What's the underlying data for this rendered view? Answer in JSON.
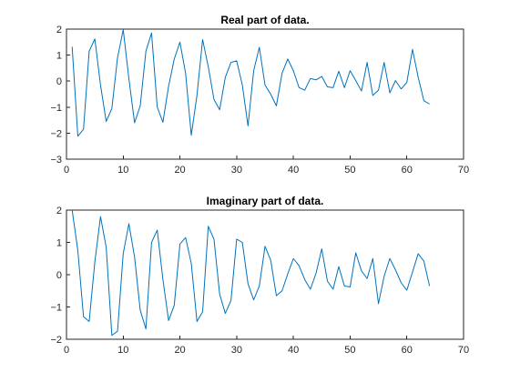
{
  "figure": {
    "background": "#ffffff",
    "axis_color": "#262626"
  },
  "chart_data": [
    {
      "type": "line",
      "title": "Real part of data.",
      "xlabel": "",
      "ylabel": "",
      "xlim": [
        0,
        70
      ],
      "ylim": [
        -3,
        2
      ],
      "xticks": [
        0,
        10,
        20,
        30,
        40,
        50,
        60,
        70
      ],
      "yticks": [
        -3,
        -2,
        -1,
        0,
        1,
        2
      ],
      "grid": false,
      "series": [
        {
          "color": "#0072bd",
          "x": [
            1,
            2,
            3,
            4,
            5,
            6,
            7,
            8,
            9,
            10,
            11,
            12,
            13,
            14,
            15,
            16,
            17,
            18,
            19,
            20,
            21,
            22,
            23,
            24,
            25,
            26,
            27,
            28,
            29,
            30,
            31,
            32,
            33,
            34,
            35,
            36,
            37,
            38,
            39,
            40,
            41,
            42,
            43,
            44,
            45,
            46,
            47,
            48,
            49,
            50,
            51,
            52,
            53,
            54,
            55,
            56,
            57,
            58,
            59,
            60,
            61,
            62,
            63,
            64
          ],
          "y": [
            1.32,
            -2.12,
            -1.85,
            1.15,
            1.62,
            -0.15,
            -1.55,
            -1.05,
            0.9,
            1.98,
            0.1,
            -1.6,
            -0.95,
            1.15,
            1.85,
            -1.0,
            -1.58,
            -0.2,
            0.85,
            1.5,
            0.3,
            -2.08,
            -0.55,
            1.6,
            0.55,
            -0.7,
            -1.1,
            0.15,
            0.72,
            0.78,
            -0.15,
            -1.72,
            0.4,
            1.3,
            -0.15,
            -0.5,
            -0.95,
            0.3,
            0.85,
            0.4,
            -0.25,
            -0.35,
            0.1,
            0.05,
            0.18,
            -0.22,
            -0.25,
            0.38,
            -0.25,
            0.4,
            0.02,
            -0.38,
            0.72,
            -0.55,
            -0.35,
            0.72,
            -0.45,
            0.02,
            -0.3,
            -0.05,
            1.22,
            0.15,
            -0.75,
            -0.88
          ]
        }
      ]
    },
    {
      "type": "line",
      "title": "Imaginary part of data.",
      "xlabel": "",
      "ylabel": "",
      "xlim": [
        0,
        70
      ],
      "ylim": [
        -2,
        2
      ],
      "xticks": [
        0,
        10,
        20,
        30,
        40,
        50,
        60,
        70
      ],
      "yticks": [
        -2,
        -1,
        0,
        1,
        2
      ],
      "grid": false,
      "series": [
        {
          "color": "#0072bd",
          "x": [
            1,
            2,
            3,
            4,
            5,
            6,
            7,
            8,
            9,
            10,
            11,
            12,
            13,
            14,
            15,
            16,
            17,
            18,
            19,
            20,
            21,
            22,
            23,
            24,
            25,
            26,
            27,
            28,
            29,
            30,
            31,
            32,
            33,
            34,
            35,
            36,
            37,
            38,
            39,
            40,
            41,
            42,
            43,
            44,
            45,
            46,
            47,
            48,
            49,
            50,
            51,
            52,
            53,
            54,
            55,
            56,
            57,
            58,
            59,
            60,
            61,
            62,
            63,
            64
          ],
          "y": [
            2.0,
            0.75,
            -1.3,
            -1.45,
            0.4,
            1.8,
            0.85,
            -1.88,
            -1.75,
            0.65,
            1.58,
            0.55,
            -1.1,
            -1.68,
            1.0,
            1.38,
            -0.15,
            -1.42,
            -0.95,
            0.95,
            1.15,
            0.35,
            -1.45,
            -1.15,
            1.5,
            1.1,
            -0.6,
            -1.2,
            -0.8,
            1.1,
            1.0,
            -0.28,
            -0.78,
            -0.35,
            0.88,
            0.45,
            -0.65,
            -0.5,
            0.02,
            0.5,
            0.28,
            -0.15,
            -0.45,
            0.05,
            0.8,
            -0.2,
            -0.45,
            0.25,
            -0.35,
            -0.38,
            0.68,
            0.12,
            -0.12,
            0.5,
            -0.9,
            -0.05,
            0.5,
            0.15,
            -0.25,
            -0.48,
            0.08,
            0.65,
            0.42,
            -0.35
          ]
        }
      ]
    }
  ]
}
